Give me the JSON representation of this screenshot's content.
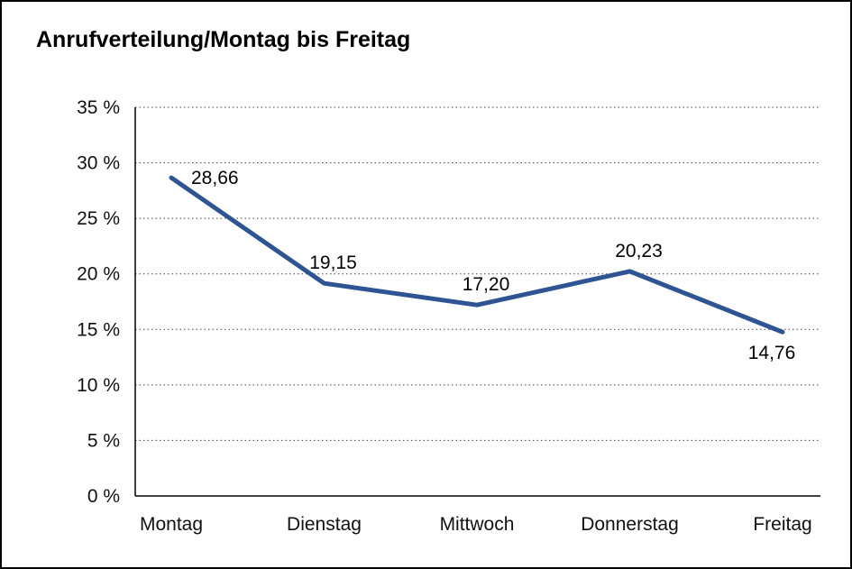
{
  "chart_data": {
    "type": "line",
    "title": "Anrufverteilung/Montag bis Freitag",
    "categories": [
      "Montag",
      "Dienstag",
      "Mittwoch",
      "Donnerstag",
      "Freitag"
    ],
    "series": [
      {
        "name": "Anrufverteilung",
        "values": [
          28.66,
          19.15,
          17.2,
          20.23,
          14.76
        ],
        "labels": [
          "28,66",
          "19,15",
          "17,20",
          "20,23",
          "14,76"
        ],
        "label_positions": [
          "right",
          "above",
          "above",
          "above",
          "below"
        ],
        "color": "#2F5494"
      }
    ],
    "xlabel": "",
    "ylabel": "",
    "ylim": [
      0,
      35
    ],
    "ytick_step": 5,
    "ytick_suffix": " %",
    "grid": "dotted-horizontal",
    "legend": "none",
    "axis_color": "#000000",
    "gridline_color": "#444444"
  }
}
